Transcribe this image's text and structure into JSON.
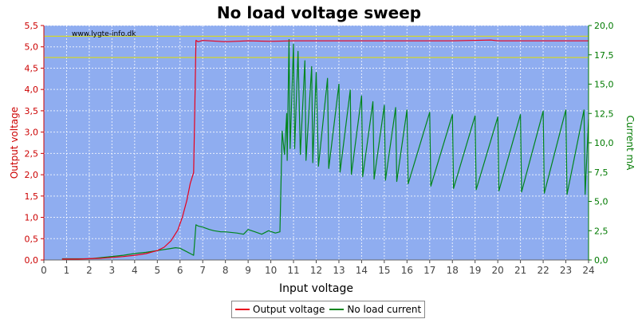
{
  "chart_data": {
    "type": "line",
    "title": "No load voltage sweep",
    "watermark": "www.lygte-info.dk",
    "xlabel": "Input voltage",
    "ylabel_left": "Output voltage",
    "ylabel_right": "Current mA",
    "xlim": [
      0,
      24
    ],
    "ylim_left": [
      0,
      5.5
    ],
    "ylim_right": [
      0,
      20.0
    ],
    "x_ticks": [
      "0",
      "1",
      "2",
      "3",
      "4",
      "5",
      "6",
      "7",
      "8",
      "9",
      "10",
      "11",
      "12",
      "13",
      "14",
      "15",
      "16",
      "17",
      "18",
      "19",
      "20",
      "21",
      "22",
      "23",
      "24"
    ],
    "y_left_ticks": [
      "0,0",
      "0,5",
      "1,0",
      "1,5",
      "2,0",
      "2,5",
      "3,0",
      "3,5",
      "4,0",
      "4,5",
      "5,0",
      "5,5"
    ],
    "y_right_ticks": [
      "0,0",
      "2,5",
      "5,0",
      "7,5",
      "10,0",
      "12,5",
      "15,0",
      "17,5",
      "20,0"
    ],
    "grid": true,
    "legend_position": "bottom",
    "reference_lines_left": [
      5.25,
      4.75
    ],
    "colors": {
      "plot_background": "#8fadf0",
      "output_voltage": "#e8001c",
      "no_load_current": "#00851c",
      "reference_line": "#e0e000",
      "left_axis": "#cc0000",
      "right_axis": "#007a00"
    },
    "series": [
      {
        "name": "Output voltage",
        "axis": "left",
        "x": [
          0.8,
          1.5,
          2.0,
          2.5,
          3.0,
          3.5,
          4.0,
          4.5,
          5.0,
          5.3,
          5.6,
          5.9,
          6.1,
          6.3,
          6.45,
          6.6,
          6.65,
          6.7,
          6.8,
          7.0,
          8.0,
          9.0,
          10.0,
          11.0,
          12.0,
          15.0,
          18.0,
          19.7,
          20.0,
          21.0,
          24.0
        ],
        "values": [
          0.02,
          0.02,
          0.03,
          0.04,
          0.06,
          0.08,
          0.11,
          0.15,
          0.22,
          0.3,
          0.45,
          0.7,
          1.0,
          1.4,
          1.8,
          2.05,
          3.5,
          5.15,
          5.12,
          5.15,
          5.12,
          5.14,
          5.13,
          5.14,
          5.14,
          5.14,
          5.14,
          5.16,
          5.14,
          5.14,
          5.14
        ]
      },
      {
        "name": "No load current",
        "axis": "right",
        "x": [
          0.8,
          2.0,
          2.5,
          3.0,
          3.5,
          4.0,
          4.5,
          5.0,
          5.5,
          5.8,
          6.0,
          6.3,
          6.6,
          6.7,
          6.8,
          7.0,
          7.3,
          7.5,
          7.8,
          8.0,
          8.5,
          8.8,
          9.0,
          9.3,
          9.6,
          9.9,
          10.2,
          10.4,
          10.5,
          10.6,
          10.7,
          10.72,
          10.8,
          10.85,
          11.0,
          11.05,
          11.2,
          11.3,
          11.5,
          11.55,
          11.8,
          11.85,
          12.0,
          12.1,
          12.5,
          12.55,
          13.0,
          13.05,
          13.5,
          13.55,
          14.0,
          14.05,
          14.5,
          14.55,
          15.0,
          15.05,
          15.5,
          15.55,
          16.0,
          16.05,
          17.0,
          17.05,
          18.0,
          18.05,
          19.0,
          19.05,
          20.0,
          20.05,
          21.0,
          21.05,
          22.0,
          22.05,
          23.0,
          23.05,
          23.8,
          23.85,
          24.0
        ],
        "values": [
          0.1,
          0.1,
          0.2,
          0.3,
          0.4,
          0.55,
          0.65,
          0.8,
          0.95,
          1.05,
          1.0,
          0.7,
          0.4,
          3.0,
          2.9,
          2.8,
          2.6,
          2.5,
          2.4,
          2.4,
          2.3,
          2.2,
          2.6,
          2.4,
          2.2,
          2.5,
          2.3,
          2.4,
          11.0,
          9.0,
          12.5,
          8.5,
          18.8,
          9.5,
          18.4,
          9.5,
          17.8,
          9.0,
          17.0,
          8.5,
          16.5,
          8.3,
          16.0,
          8.0,
          15.5,
          7.8,
          15.0,
          7.5,
          14.5,
          7.3,
          14.0,
          7.1,
          13.5,
          6.9,
          13.2,
          6.8,
          13.0,
          6.7,
          12.8,
          6.5,
          12.6,
          6.3,
          12.4,
          6.1,
          12.3,
          6.0,
          12.2,
          5.9,
          12.4,
          5.8,
          12.7,
          5.7,
          12.8,
          5.6,
          12.8,
          5.6,
          12.0
        ]
      }
    ]
  }
}
